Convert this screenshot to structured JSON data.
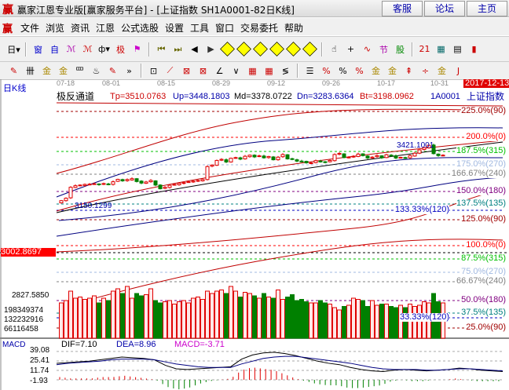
{
  "window": {
    "logo": "赢",
    "title": "赢家江恩专业版[赢家服务平台] - [上证指数  SH1A0001-82日K线]",
    "buttons": [
      "客服",
      "论坛",
      "主页"
    ]
  },
  "menu": {
    "logo": "赢",
    "items": [
      "文件",
      "浏览",
      "资讯",
      "江恩",
      "公式选股",
      "设置",
      "工具",
      "窗口",
      "交易委托",
      "帮助"
    ]
  },
  "toolbar1": [
    {
      "n": "period-day",
      "g": "日▾",
      "c": "#000"
    },
    {
      "n": "sep"
    },
    {
      "n": "window-icon",
      "g": "窗",
      "c": "#00c"
    },
    {
      "n": "self-select-icon",
      "g": "自",
      "c": "#00c"
    },
    {
      "n": "ma3-icon",
      "g": "ℳ",
      "c": "#a0a"
    },
    {
      "n": "ma9-icon",
      "g": "ℳ",
      "c": "#c00"
    },
    {
      "n": "candle-type-icon",
      "g": "ф▾",
      "c": "#000"
    },
    {
      "n": "extreme-icon",
      "g": "极",
      "c": "#c00"
    },
    {
      "n": "flag-icon",
      "g": "⚑",
      "c": "#c0c"
    },
    {
      "n": "sep"
    },
    {
      "n": "first-icon",
      "g": "⏮",
      "c": "#660"
    },
    {
      "n": "last-icon",
      "g": "⏭",
      "c": "#660"
    },
    {
      "n": "prev-icon",
      "g": "◀",
      "c": "#000"
    },
    {
      "n": "next-icon",
      "g": "▶",
      "c": "#333"
    },
    {
      "n": "diamond-left-icon",
      "g": "◆",
      "c": "#dd0"
    },
    {
      "n": "diamond-right-icon",
      "g": "◆",
      "c": "#dd0"
    },
    {
      "n": "diamond-expand-icon",
      "g": "◆",
      "c": "#dd0"
    },
    {
      "n": "diamond-shrink-icon",
      "g": "◆",
      "c": "#dd0"
    },
    {
      "n": "diamond-up-icon",
      "g": "◆",
      "c": "#dd0"
    },
    {
      "n": "diamond-down-icon",
      "g": "◆",
      "c": "#dd0"
    },
    {
      "n": "sep"
    },
    {
      "n": "hand-icon",
      "g": "☝",
      "c": "#000"
    },
    {
      "n": "crosshair-icon",
      "g": "+",
      "c": "#000"
    },
    {
      "n": "line-icon",
      "g": "∿",
      "c": "#c00"
    },
    {
      "n": "section-icon",
      "g": "节",
      "c": "#a0a"
    },
    {
      "n": "stock-icon",
      "g": "股",
      "c": "#080"
    },
    {
      "n": "sep"
    },
    {
      "n": "calendar-icon",
      "g": "21",
      "c": "#c00"
    },
    {
      "n": "calculator-icon",
      "g": "▦",
      "c": "#066"
    },
    {
      "n": "notes-icon",
      "g": "▤",
      "c": "#000"
    },
    {
      "n": "book-icon",
      "g": "▮",
      "c": "#c00"
    }
  ],
  "toolbar2": [
    {
      "n": "pen-icon",
      "g": "✎",
      "c": "#c00"
    },
    {
      "n": "grid-lines-icon",
      "g": "卌",
      "c": "#000"
    },
    {
      "n": "gold-ruler-icon",
      "g": "金",
      "c": "#a80"
    },
    {
      "n": "gold-ruler2-icon",
      "g": "金",
      "c": "#a80"
    },
    {
      "n": "time-ruler-icon",
      "g": "罒",
      "c": "#000"
    },
    {
      "n": "spiral-icon",
      "g": "♨",
      "c": "#000"
    },
    {
      "n": "marker-icon",
      "g": "✎",
      "c": "#c00"
    },
    {
      "n": "more-icon",
      "g": "»",
      "c": "#000"
    },
    {
      "n": "sep"
    },
    {
      "n": "box-icon",
      "g": "⊡",
      "c": "#000"
    },
    {
      "n": "fan-icon",
      "g": "⟋",
      "c": "#c00"
    },
    {
      "n": "square-icon",
      "g": "⊠",
      "c": "#c00"
    },
    {
      "n": "angle-box-icon",
      "g": "⊠",
      "c": "#c00"
    },
    {
      "n": "angle-icon",
      "g": "∠",
      "c": "#000"
    },
    {
      "n": "wave-icon",
      "g": "∨",
      "c": "#000"
    },
    {
      "n": "grid-icon",
      "g": "▦",
      "c": "#c00"
    },
    {
      "n": "grid2-icon",
      "g": "▦",
      "c": "#c00"
    },
    {
      "n": "parallel-icon",
      "g": "≶",
      "c": "#000"
    },
    {
      "n": "sep"
    },
    {
      "n": "fib-table-icon",
      "g": "☰",
      "c": "#000"
    },
    {
      "n": "percent-line-icon",
      "g": "%",
      "c": "#c00"
    },
    {
      "n": "percent-icon",
      "g": "%",
      "c": "#000"
    },
    {
      "n": "percent-lines-icon",
      "g": "%",
      "c": "#c00"
    },
    {
      "n": "gold-circle-icon",
      "g": "金",
      "c": "#a80"
    },
    {
      "n": "gold-lines-icon",
      "g": "金",
      "c": "#a80"
    },
    {
      "n": "price-arrow-icon",
      "g": "⇞",
      "c": "#c00"
    },
    {
      "n": "divide-icon",
      "g": "÷",
      "c": "#c00"
    },
    {
      "n": "gold-gap-icon",
      "g": "金",
      "c": "#a80"
    },
    {
      "n": "j-line-icon",
      "g": "J",
      "c": "#c00"
    }
  ],
  "chart": {
    "period_label": "日K线",
    "dates": [
      "07-18",
      "08-01",
      "08-15",
      "08-29",
      "09-12",
      "09-26",
      "10-17",
      "10-31"
    ],
    "current_date": "2017-12-13",
    "indicator": {
      "name": "极反通道",
      "tp": "Tp=3510.0763",
      "up": "Up=3448.1803",
      "md": "Md=3378.0722",
      "dn": "Dn=3283.6364",
      "bt": "Bt=3198.0962",
      "code": "1A0001",
      "stock": "上证指数"
    },
    "price_label_high": "3421.1001",
    "price_label_low": "3150.1299",
    "cursor_price": "3002.8697",
    "low_price_label": "2827.5850",
    "volume_ticks": [
      "198349374",
      "132232916",
      "66116458"
    ],
    "fib_levels": [
      {
        "t": "225.0%(90)",
        "c": "#a00000"
      },
      {
        "t": "200.0%(0)",
        "c": "#ff0000"
      },
      {
        "t": "187.5%(315)",
        "c": "#00c000"
      },
      {
        "t": "175.0%(270)",
        "c": "#a0b8e0"
      },
      {
        "t": "166.67%(240)",
        "c": "#808080"
      },
      {
        "t": "150.0%(180)",
        "c": "#800080"
      },
      {
        "t": "137.5%(135)",
        "c": "#008080"
      },
      {
        "t": "133.33%(120)",
        "c": "#0000c0"
      },
      {
        "t": "125.0%(90)",
        "c": "#a00000"
      },
      {
        "t": "100.0%(0)",
        "c": "#ff0000"
      },
      {
        "t": "87.5%(315)",
        "c": "#00c000"
      },
      {
        "t": "75.0%(270)",
        "c": "#a0b8e0"
      },
      {
        "t": "66.67%(240)",
        "c": "#808080"
      },
      {
        "t": "50.0%(180)",
        "c": "#800080"
      },
      {
        "t": "37.5%(135)",
        "c": "#008080"
      },
      {
        "t": "33.33%(120)",
        "c": "#0000c0"
      },
      {
        "t": "25.0%(90)",
        "c": "#a00000"
      }
    ],
    "closes": [
      3176,
      3187,
      3237,
      3244,
      3247,
      3250,
      3251,
      3253,
      3249,
      3254,
      3250,
      3262,
      3273,
      3266,
      3272,
      3276,
      3263,
      3256,
      3261,
      3268,
      3247,
      3230,
      3237,
      3246,
      3250,
      3255,
      3258,
      3262,
      3265,
      3268,
      3272,
      3331,
      3338,
      3359,
      3364,
      3352,
      3369,
      3372,
      3365,
      3378,
      3383,
      3375,
      3380,
      3371,
      3377,
      3362,
      3374,
      3386,
      3366,
      3364,
      3356,
      3353,
      3348,
      3348,
      3358,
      3353,
      3351,
      3359,
      3386,
      3391,
      3372,
      3374,
      3378,
      3388,
      3381,
      3370,
      3374,
      3381,
      3371,
      3385,
      3380,
      3370,
      3373,
      3370,
      3381,
      3392,
      3407,
      3417,
      3428,
      3390,
      3381,
      3383
    ],
    "volumes": [
      150,
      160,
      200,
      170,
      175,
      165,
      170,
      180,
      150,
      170,
      160,
      200,
      210,
      190,
      220,
      170,
      190,
      180,
      185,
      210,
      160,
      150,
      155,
      160,
      145,
      155,
      160,
      150,
      170,
      175,
      165,
      200,
      190,
      200,
      205,
      190,
      220,
      200,
      175,
      195,
      190,
      180,
      170,
      190,
      175,
      170,
      205,
      165,
      175,
      185,
      160,
      165,
      155,
      150,
      150,
      160,
      150,
      145,
      130,
      120,
      135,
      140,
      170,
      165,
      160,
      135,
      160,
      140,
      145,
      145,
      135,
      130,
      140,
      130,
      145,
      135,
      140,
      155,
      150,
      190,
      155,
      150
    ],
    "macd": {
      "dif_label": "DIF=7.10",
      "dea_label": "DEA=8.96",
      "macd_label": "MACD=-3.71",
      "ticks": [
        "39.08",
        "25.41",
        "11.74",
        "-1.93"
      ],
      "dif": [
        22,
        23,
        24,
        25,
        27,
        29,
        31,
        30,
        29,
        27,
        19,
        14,
        13,
        14,
        15,
        16,
        17,
        28,
        34,
        37,
        38,
        36,
        33,
        29,
        25,
        22,
        20,
        16,
        13,
        11,
        10,
        12,
        13,
        12,
        11,
        12,
        13,
        15,
        14,
        12,
        11,
        10
      ],
      "dea": [
        20,
        22,
        23,
        24,
        25,
        27,
        28,
        28,
        28,
        27,
        24,
        21,
        19,
        17,
        16,
        16,
        16,
        21,
        25,
        29,
        31,
        32,
        32,
        30,
        28,
        26,
        24,
        22,
        19,
        16,
        14,
        13,
        13,
        13,
        12,
        12,
        13,
        14,
        14,
        13,
        12,
        11
      ]
    },
    "colors": {
      "up": "#e00000",
      "down": "#008000",
      "bg": "#ffffff",
      "cursor_bg": "#ff0000"
    }
  }
}
